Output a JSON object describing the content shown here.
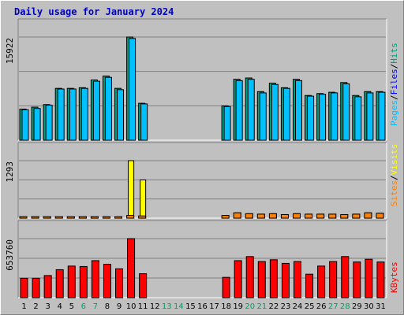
{
  "chart_data": {
    "title": "Daily usage for January 2024",
    "type": "bar",
    "grid": true,
    "days": [
      "1",
      "2",
      "3",
      "4",
      "5",
      "6",
      "7",
      "8",
      "9",
      "10",
      "11",
      "12",
      "13",
      "14",
      "15",
      "16",
      "17",
      "18",
      "19",
      "20",
      "21",
      "22",
      "23",
      "24",
      "25",
      "26",
      "27",
      "28",
      "29",
      "30",
      "31"
    ],
    "weekend_days": [
      "6",
      "7",
      "13",
      "14",
      "20",
      "21",
      "27",
      "28"
    ],
    "panels": [
      {
        "ylabel_max": "15922",
        "ymax": 15922,
        "legend": [
          {
            "text": "Pages",
            "color": "#00c0ff"
          },
          {
            "text": "Files",
            "color": "#0000ff"
          },
          {
            "text": "Hits",
            "color": "#00a080"
          }
        ],
        "series": [
          {
            "name": "Hits",
            "color": "#00a080",
            "values": [
              4800,
              5100,
              5500,
              8000,
              8000,
              8100,
              9300,
              9900,
              8000,
              15922,
              5700,
              0,
              0,
              0,
              0,
              0,
              0,
              5300,
              9400,
              9600,
              7500,
              8800,
              8100,
              9400,
              6900,
              7200,
              7400,
              8900,
              6900,
              7500,
              7500
            ]
          },
          {
            "name": "Files",
            "color": "#0000ff",
            "values": [
              4700,
              4900,
              5400,
              7900,
              7900,
              8000,
              9100,
              9700,
              7800,
              15700,
              5600,
              0,
              0,
              0,
              0,
              0,
              0,
              5200,
              9200,
              9400,
              7300,
              8600,
              8000,
              9200,
              6800,
              7100,
              7300,
              8700,
              6700,
              7300,
              7400
            ]
          },
          {
            "name": "Pages",
            "color": "#00c0ff",
            "values": [
              4700,
              4900,
              5400,
              7900,
              7900,
              8000,
              9100,
              9700,
              7800,
              15700,
              5600,
              0,
              0,
              0,
              0,
              0,
              0,
              5200,
              9200,
              9400,
              7300,
              8600,
              8000,
              9200,
              6800,
              7100,
              7300,
              8700,
              6700,
              7300,
              7400
            ]
          }
        ]
      },
      {
        "ylabel_max": "1293",
        "ymax": 1293,
        "legend": [
          {
            "text": "Sites",
            "color": "#ff8000"
          },
          {
            "text": "Visits",
            "color": "#ffff00"
          }
        ],
        "series": [
          {
            "name": "Visits",
            "color": "#ffff00",
            "values": [
              12,
              12,
              12,
              12,
              12,
              12,
              12,
              12,
              12,
              1293,
              860,
              0,
              0,
              0,
              0,
              0,
              0,
              60,
              120,
              100,
              90,
              100,
              80,
              100,
              90,
              90,
              90,
              80,
              90,
              120,
              110
            ]
          },
          {
            "name": "Sites",
            "color": "#ff8000",
            "values": [
              12,
              12,
              12,
              12,
              12,
              12,
              12,
              12,
              12,
              60,
              50,
              0,
              0,
              0,
              0,
              0,
              0,
              60,
              120,
              100,
              90,
              100,
              80,
              100,
              90,
              90,
              90,
              80,
              90,
              120,
              110
            ]
          }
        ]
      },
      {
        "ylabel_max": "653760",
        "ymax": 653760,
        "legend": [
          {
            "text": "KBytes",
            "color": "#ff0000"
          }
        ],
        "series": [
          {
            "name": "KBytes",
            "color": "#ff0000",
            "values": [
              215000,
              215000,
              245000,
              310000,
              350000,
              345000,
              410000,
              370000,
              320000,
              653760,
              265000,
              0,
              0,
              0,
              0,
              0,
              0,
              225000,
              410000,
              455000,
              400000,
              420000,
              380000,
              400000,
              260000,
              350000,
              400000,
              455000,
              395000,
              425000,
              395000
            ]
          }
        ]
      }
    ]
  }
}
